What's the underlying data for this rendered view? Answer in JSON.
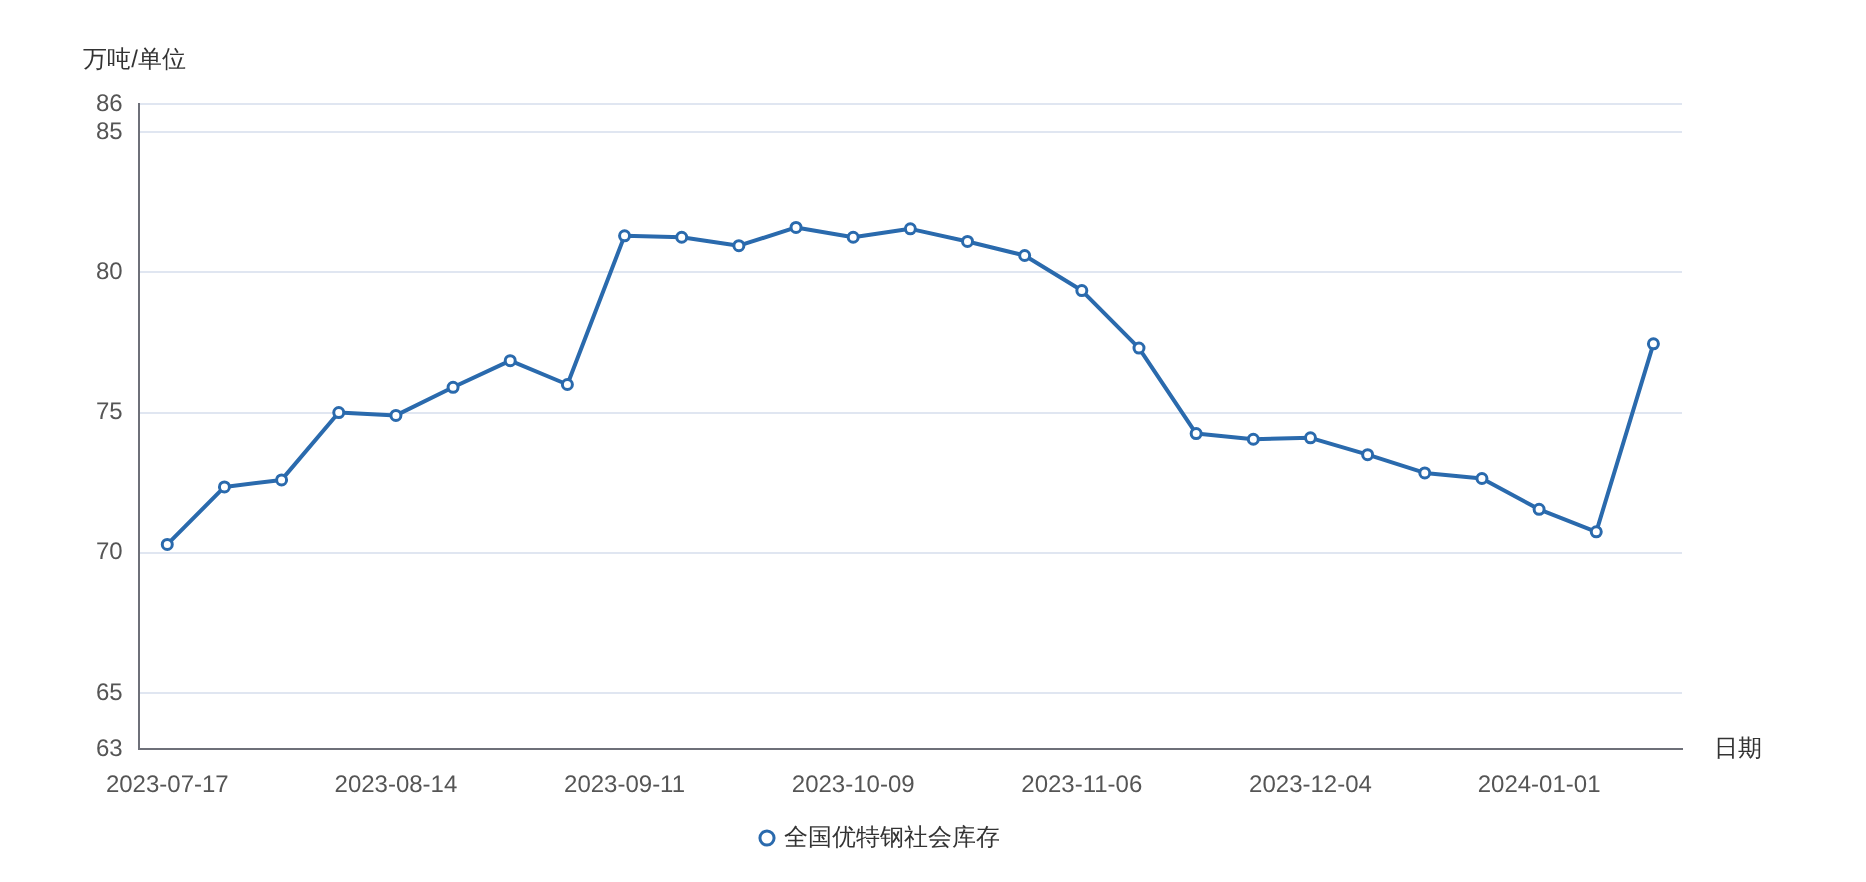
{
  "chart_data": {
    "type": "line",
    "xlabel": "日期",
    "ylabel": "万吨/单位",
    "categories": [
      "2023-07-17",
      null,
      null,
      null,
      "2023-08-14",
      null,
      null,
      null,
      "2023-09-11",
      null,
      null,
      null,
      "2023-10-09",
      null,
      null,
      null,
      "2023-11-06",
      null,
      null,
      null,
      "2023-12-04",
      null,
      null,
      null,
      "2024-01-01",
      null,
      null
    ],
    "series": [
      {
        "name": "全国优特钢社会库存",
        "color": "#2a6aad",
        "values": [
          70.3,
          72.35,
          72.6,
          75.0,
          74.9,
          75.9,
          76.85,
          76.0,
          81.3,
          81.25,
          80.95,
          81.6,
          81.25,
          81.55,
          81.1,
          80.6,
          79.35,
          77.3,
          74.25,
          74.05,
          74.1,
          73.5,
          72.85,
          72.65,
          71.55,
          70.75,
          77.45
        ]
      }
    ],
    "ylim": [
      63,
      86
    ],
    "yticks": [
      63,
      65,
      70,
      75,
      80,
      85,
      86
    ],
    "grid": "y",
    "legend": "bottom",
    "marker": "circle",
    "line_style": "solid"
  }
}
